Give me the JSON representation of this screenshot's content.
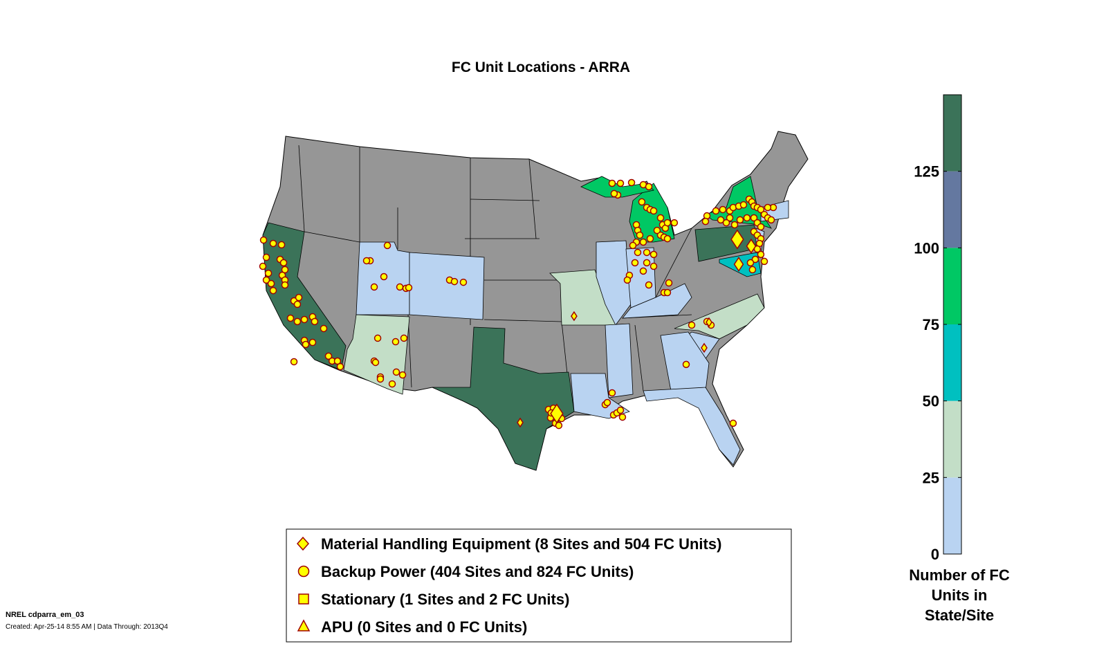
{
  "chart_data": {
    "type": "map",
    "title": "FC Unit Locations - ARRA",
    "colorbar": {
      "label_lines": [
        "Number of FC",
        "Units in",
        "State/Site"
      ],
      "ticks": [
        0,
        25,
        50,
        75,
        100,
        125
      ],
      "range": [
        0,
        150
      ],
      "bins": [
        {
          "from": 0,
          "to": 25,
          "color": "#b9d3f1"
        },
        {
          "from": 25,
          "to": 50,
          "color": "#c3dec7"
        },
        {
          "from": 50,
          "to": 75,
          "color": "#00c0c0"
        },
        {
          "from": 75,
          "to": 100,
          "color": "#00c864"
        },
        {
          "from": 100,
          "to": 125,
          "color": "#6478a0"
        },
        {
          "from": 125,
          "to": 150,
          "color": "#3b7359"
        }
      ]
    },
    "base_state_color": "#969696",
    "state_bins": {
      "CA": 125,
      "TX": 125,
      "PA": 125,
      "MI": 75,
      "NY": 75,
      "MD": 50,
      "AZ": 25,
      "MO": 25,
      "NC": 25,
      "UT": 0,
      "CO": 0,
      "IL": 0,
      "IN": 0,
      "KY": 0,
      "LA": 0,
      "MS": 0,
      "GA": 0,
      "SC": 0,
      "FL": 0,
      "NJ": 0,
      "MA": 0
    },
    "marker_colors": {
      "fill": "#ffff00",
      "edge": "#a00000"
    },
    "legend": [
      {
        "marker": "diamond",
        "label": "Material Handling Equipment (8 Sites and 504 FC Units)"
      },
      {
        "marker": "circle",
        "label": "Backup Power (404 Sites and 824 FC Units)"
      },
      {
        "marker": "square",
        "label": "Stationary (1 Sites and 2 FC Units)"
      },
      {
        "marker": "triangle",
        "label": "APU (0 Sites and 0 FC Units)"
      }
    ],
    "material_handling_sites": [
      {
        "lon": -94.36,
        "lat": 29.88,
        "size": "large"
      },
      {
        "lon": -97.92,
        "lat": 29.35,
        "size": "small"
      },
      {
        "lon": -92.68,
        "lat": 35.63,
        "size": "small"
      },
      {
        "lon": -76.81,
        "lat": 40.16,
        "size": "large"
      },
      {
        "lon": -75.46,
        "lat": 39.76,
        "size": "medium"
      },
      {
        "lon": -76.67,
        "lat": 38.69,
        "size": "medium"
      },
      {
        "lon": -80.03,
        "lat": 33.76,
        "size": "small"
      },
      {
        "lon": -79.56,
        "lat": 35.27,
        "size": "small"
      }
    ],
    "backup_power_sites": [
      [
        -122.87,
        40.12
      ],
      [
        -121.93,
        39.92
      ],
      [
        -121.12,
        39.84
      ],
      [
        -122.6,
        39.1
      ],
      [
        -122.94,
        38.57
      ],
      [
        -122.4,
        38.16
      ],
      [
        -122.6,
        37.76
      ],
      [
        -122.13,
        37.55
      ],
      [
        -121.93,
        37.14
      ],
      [
        -121.26,
        38.98
      ],
      [
        -120.92,
        38.78
      ],
      [
        -120.79,
        38.37
      ],
      [
        -121.05,
        38.04
      ],
      [
        -120.79,
        37.76
      ],
      [
        -120.79,
        37.47
      ],
      [
        -119.91,
        36.53
      ],
      [
        -119.58,
        36.33
      ],
      [
        -119.44,
        36.73
      ],
      [
        -120.25,
        35.51
      ],
      [
        -119.58,
        35.31
      ],
      [
        -118.9,
        35.43
      ],
      [
        -118.1,
        35.59
      ],
      [
        -117.9,
        35.31
      ],
      [
        -117.02,
        34.9
      ],
      [
        -118.9,
        34.2
      ],
      [
        -118.77,
        33.96
      ],
      [
        -118.1,
        34.08
      ],
      [
        -119.91,
        32.94
      ],
      [
        -116.55,
        33.27
      ],
      [
        -116.2,
        32.98
      ],
      [
        -115.68,
        32.98
      ],
      [
        -115.41,
        32.65
      ],
      [
        -110.83,
        39.8
      ],
      [
        -112.51,
        38.9
      ],
      [
        -112.85,
        38.9
      ],
      [
        -111.17,
        37.96
      ],
      [
        -112.11,
        37.35
      ],
      [
        -109.62,
        37.35
      ],
      [
        -109.02,
        37.27
      ],
      [
        -108.75,
        37.31
      ],
      [
        -104.78,
        37.76
      ],
      [
        -104.31,
        37.67
      ],
      [
        -103.44,
        37.63
      ],
      [
        -111.77,
        34.33
      ],
      [
        -110.03,
        34.12
      ],
      [
        -109.22,
        34.33
      ],
      [
        -112.11,
        32.98
      ],
      [
        -111.98,
        32.9
      ],
      [
        -111.51,
        32.04
      ],
      [
        -111.51,
        31.92
      ],
      [
        -110.36,
        31.63
      ],
      [
        -109.96,
        32.33
      ],
      [
        -109.35,
        32.16
      ],
      [
        -95.16,
        30.12
      ],
      [
        -94.69,
        30.2
      ],
      [
        -94.16,
        29.88
      ],
      [
        -94.96,
        29.63
      ],
      [
        -93.89,
        29.59
      ],
      [
        -94.49,
        29.31
      ],
      [
        -94.16,
        29.18
      ],
      [
        -94.9,
        29.92
      ],
      [
        -88.98,
        31.1
      ],
      [
        -89.65,
        30.41
      ],
      [
        -89.45,
        30.53
      ],
      [
        -88.84,
        29.8
      ],
      [
        -88.51,
        29.92
      ],
      [
        -88.17,
        30.08
      ],
      [
        -87.97,
        29.67
      ],
      [
        -86.62,
        40.0
      ],
      [
        -86.49,
        39.39
      ],
      [
        -85.61,
        39.39
      ],
      [
        -84.94,
        39.27
      ],
      [
        -86.76,
        38.78
      ],
      [
        -85.61,
        38.78
      ],
      [
        -84.94,
        38.57
      ],
      [
        -85.95,
        38.29
      ],
      [
        -87.3,
        38.04
      ],
      [
        -87.5,
        37.76
      ],
      [
        -85.41,
        37.47
      ],
      [
        -83.46,
        37.59
      ],
      [
        -83.93,
        37.02
      ],
      [
        -83.6,
        37.02
      ],
      [
        -88.98,
        43.47
      ],
      [
        -88.17,
        43.47
      ],
      [
        -87.09,
        43.51
      ],
      [
        -85.95,
        43.39
      ],
      [
        -85.41,
        43.27
      ],
      [
        -88.44,
        42.78
      ],
      [
        -88.78,
        42.86
      ],
      [
        -86.09,
        42.37
      ],
      [
        -85.61,
        42.04
      ],
      [
        -85.28,
        41.92
      ],
      [
        -84.94,
        41.84
      ],
      [
        -84.27,
        41.43
      ],
      [
        -84.07,
        41.02
      ],
      [
        -83.8,
        40.82
      ],
      [
        -84.27,
        40.41
      ],
      [
        -83.93,
        40.29
      ],
      [
        -83.6,
        40.2
      ],
      [
        -86.62,
        41.02
      ],
      [
        -86.49,
        40.69
      ],
      [
        -86.29,
        40.41
      ],
      [
        -85.95,
        40.0
      ],
      [
        -85.28,
        40.2
      ],
      [
        -84.61,
        40.69
      ],
      [
        -83.6,
        41.14
      ],
      [
        -82.93,
        41.14
      ],
      [
        -86.96,
        39.8
      ],
      [
        -79.76,
        41.55
      ],
      [
        -79.9,
        41.22
      ],
      [
        -78.89,
        41.84
      ],
      [
        -78.22,
        41.92
      ],
      [
        -77.54,
        41.84
      ],
      [
        -77.21,
        42.04
      ],
      [
        -76.67,
        42.12
      ],
      [
        -76.2,
        42.2
      ],
      [
        -75.66,
        42.53
      ],
      [
        -75.39,
        42.37
      ],
      [
        -75.19,
        42.12
      ],
      [
        -74.86,
        42.04
      ],
      [
        -74.52,
        41.92
      ],
      [
        -74.18,
        41.63
      ],
      [
        -73.85,
        41.43
      ],
      [
        -73.51,
        41.31
      ],
      [
        -73.31,
        42.04
      ],
      [
        -73.85,
        42.04
      ],
      [
        -78.42,
        41.31
      ],
      [
        -77.54,
        41.43
      ],
      [
        -76.54,
        41.31
      ],
      [
        -75.87,
        41.43
      ],
      [
        -75.19,
        41.43
      ],
      [
        -74.86,
        41.14
      ],
      [
        -74.52,
        40.9
      ],
      [
        -75.19,
        40.61
      ],
      [
        -74.86,
        40.41
      ],
      [
        -74.52,
        40.2
      ],
      [
        -74.65,
        39.92
      ],
      [
        -74.86,
        39.59
      ],
      [
        -74.52,
        39.27
      ],
      [
        -74.18,
        38.86
      ],
      [
        -75.06,
        38.98
      ],
      [
        -75.53,
        38.78
      ],
      [
        -75.33,
        38.37
      ],
      [
        -77.88,
        41.14
      ],
      [
        -77.07,
        41.02
      ],
      [
        -81.78,
        32.78
      ],
      [
        -81.24,
        35.1
      ],
      [
        -79.76,
        35.31
      ],
      [
        -79.36,
        35.1
      ],
      [
        -77.21,
        29.31
      ]
    ]
  },
  "footer": {
    "id_line": "NREL cdparra_em_03",
    "created_line": "Created: Apr-25-14  8:55 AM | Data Through: 2013Q4"
  }
}
